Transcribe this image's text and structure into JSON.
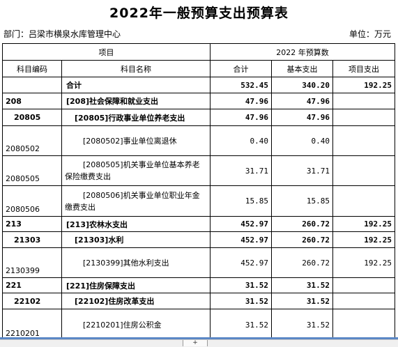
{
  "title": "2022年一般预算支出预算表",
  "department": "部门：吕梁市横泉水库管理中心",
  "unit": "单位：万元",
  "header": {
    "item": "项目",
    "budget_group": "2022 年预算数",
    "code": "科目编码",
    "name": "科目名称",
    "total": "合计",
    "basic": "基本支出",
    "project": "项目支出"
  },
  "rows": [
    {
      "code": "",
      "name": "合计",
      "total": "532.45",
      "basic": "340.20",
      "project": "192.25"
    },
    {
      "code": "208",
      "name": "[208]社会保障和就业支出",
      "total": "47.96",
      "basic": "47.96",
      "project": ""
    },
    {
      "code": "20805",
      "name": "[20805]行政事业单位养老支出",
      "total": "47.96",
      "basic": "47.96",
      "project": ""
    },
    {
      "code": "2080502",
      "name": "[2080502]事业单位离退休",
      "total": "0.40",
      "basic": "0.40",
      "project": ""
    },
    {
      "code": "2080505",
      "name": "[2080505]机关事业单位基本养老保险缴费支出",
      "total": "31.71",
      "basic": "31.71",
      "project": ""
    },
    {
      "code": "2080506",
      "name": "[2080506]机关事业单位职业年金缴费支出",
      "total": "15.85",
      "basic": "15.85",
      "project": ""
    },
    {
      "code": "213",
      "name": "[213]农林水支出",
      "total": "452.97",
      "basic": "260.72",
      "project": "192.25"
    },
    {
      "code": "21303",
      "name": "[21303]水利",
      "total": "452.97",
      "basic": "260.72",
      "project": "192.25"
    },
    {
      "code": "2130399",
      "name": "[2130399]其他水利支出",
      "total": "452.97",
      "basic": "260.72",
      "project": "192.25"
    },
    {
      "code": "221",
      "name": "[221]住房保障支出",
      "total": "31.52",
      "basic": "31.52",
      "project": ""
    },
    {
      "code": "22102",
      "name": "[22102]住房改革支出",
      "total": "31.52",
      "basic": "31.52",
      "project": ""
    },
    {
      "code": "2210201",
      "name": "[2210201]住房公积金",
      "total": "31.52",
      "basic": "31.52",
      "project": ""
    }
  ],
  "status": {
    "tab_mark": "+"
  },
  "colors": {
    "sheet_edge": "#5b87c5"
  }
}
